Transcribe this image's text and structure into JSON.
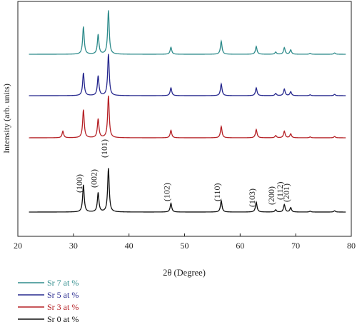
{
  "chart_data": {
    "type": "line",
    "xlabel": "2θ (Degree)",
    "ylabel": "Intensity (arb. units)",
    "xlim": [
      20,
      80
    ],
    "x_ticks": [
      "20",
      "30",
      "40",
      "50",
      "60",
      "70",
      "80"
    ],
    "y_tick_labels_shown": false,
    "grid": false,
    "legend_position": "bottom-left",
    "baseline_x_range": [
      22,
      79
    ],
    "peaks_x": [
      31.8,
      34.45,
      36.3,
      47.55,
      56.6,
      62.9,
      66.4,
      67.95,
      69.1,
      72.6,
      77.0
    ],
    "series": [
      {
        "name": "Sr 7 at %",
        "color": "#2e8b8b",
        "offset": 3,
        "peak_heights": [
          0.63,
          0.45,
          1.0,
          0.16,
          0.3,
          0.18,
          0.05,
          0.15,
          0.1,
          0.02,
          0.03
        ],
        "extra_peaks": []
      },
      {
        "name": "Sr 5 at %",
        "color": "#26288e",
        "offset": 2,
        "peak_heights": [
          0.52,
          0.45,
          0.95,
          0.18,
          0.27,
          0.18,
          0.05,
          0.15,
          0.09,
          0.02,
          0.03
        ],
        "extra_peaks": []
      },
      {
        "name": "Sr 3 at %",
        "color": "#b52025",
        "offset": 1,
        "peak_heights": [
          0.64,
          0.43,
          0.96,
          0.17,
          0.26,
          0.19,
          0.05,
          0.15,
          0.09,
          0.02,
          0.03
        ],
        "extra_peaks": [
          {
            "x": 28.1,
            "h": 0.15
          }
        ]
      },
      {
        "name": "Sr 0 at %",
        "color": "#111111",
        "offset": 0,
        "peak_heights": [
          0.62,
          0.44,
          1.0,
          0.2,
          0.26,
          0.23,
          0.05,
          0.17,
          0.1,
          0.02,
          0.03
        ],
        "extra_peaks": []
      }
    ],
    "annotations": [
      {
        "text": "(100)",
        "x": 31.8
      },
      {
        "text": "(002)",
        "x": 34.45
      },
      {
        "text": "(101)",
        "x": 36.3
      },
      {
        "text": "(102)",
        "x": 47.55
      },
      {
        "text": "(110)",
        "x": 56.6
      },
      {
        "text": "(103)",
        "x": 62.9
      },
      {
        "text": "(200)",
        "x": 66.4
      },
      {
        "text": "(112)",
        "x": 67.95
      },
      {
        "text": "(201)",
        "x": 69.1
      }
    ]
  }
}
